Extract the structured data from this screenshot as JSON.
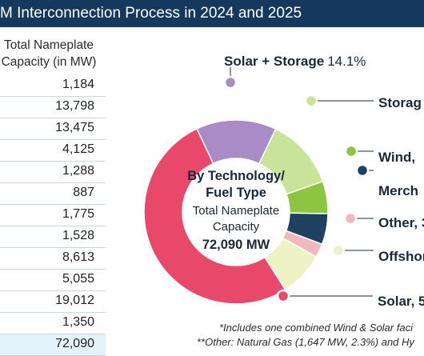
{
  "title": "M Interconnection Process in 2024 and 2025",
  "table": {
    "header_line1": "Total Nameplate",
    "header_line2": "Capacity (in MW)",
    "values": [
      "1,184",
      "13,798",
      "13,475",
      "4,125",
      "1,288",
      "887",
      "1,775",
      "1,528",
      "8,613",
      "5,055",
      "19,012",
      "1,350"
    ],
    "total": "72,090"
  },
  "center": {
    "line1": "By Technology/",
    "line2": "Fuel Type",
    "line3": "Total Nameplate",
    "line4": "Capacity",
    "line5": "72,090 MW"
  },
  "chart_data": {
    "type": "pie",
    "style": "donut",
    "title": "By Technology/ Fuel Type",
    "subtitle": "Total Nameplate Capacity 72,090 MW",
    "slices": [
      {
        "label": "Solar + Storage",
        "value": 14.1,
        "value_label": "14.1%",
        "color": "#a98bc6"
      },
      {
        "label": "Storag",
        "value": 12.5,
        "value_label": "",
        "color": "#c9e39a"
      },
      {
        "label": "Wind,",
        "value": 5.7,
        "value_label": "",
        "color": "#8cc63f"
      },
      {
        "label": "Merch",
        "value": 5.4,
        "value_label": "",
        "color": "#1d4260"
      },
      {
        "label": "Other, 3",
        "value": 2.4,
        "value_label": "",
        "color": "#f2b8bc"
      },
      {
        "label": "Offshor",
        "value": 7.9,
        "value_label": "",
        "color": "#eef3c5"
      },
      {
        "label": "Solar, 5",
        "value": 52.0,
        "value_label": "",
        "color": "#e8496b"
      }
    ],
    "footnotes": [
      "*Includes one combined Wind & Solar faci",
      "**Other: Natural Gas (1,647 MW, 2.3%) and Hy"
    ]
  }
}
